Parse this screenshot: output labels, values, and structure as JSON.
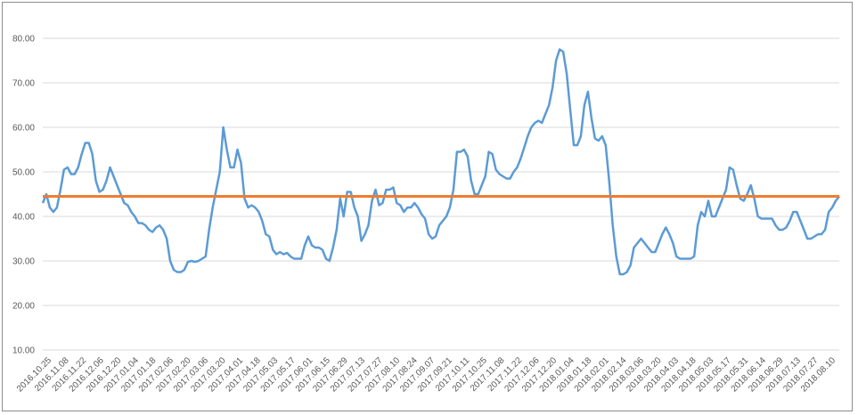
{
  "chart_data": {
    "type": "line",
    "title": "",
    "xlabel": "",
    "ylabel": "",
    "ylim": [
      10,
      80
    ],
    "yticks": [
      "10.00",
      "20.00",
      "30.00",
      "40.00",
      "50.00",
      "60.00",
      "70.00",
      "80.00"
    ],
    "grid": true,
    "legend": "none",
    "x_tick_labels": [
      "2016.10.25",
      "2016.11.08",
      "2016.11.22",
      "2016.12.06",
      "2016.12.20",
      "2017.01.04",
      "2017.01.18",
      "2017.02.06",
      "2017.02.20",
      "2017.03.06",
      "2017.03.20",
      "2017.04.01",
      "2017.04.18",
      "2017.05.03",
      "2017.05.17",
      "2017.06.01",
      "2017.06.15",
      "2017.06.29",
      "2017.07.13",
      "2017.07.27",
      "2017.08.10",
      "2017.08.24",
      "2017.09.07",
      "2017.09.21",
      "2017.10.11",
      "2017.10.25",
      "2017.11.08",
      "2017.11.22",
      "2017.12.06",
      "2017.12.20",
      "2018.01.04",
      "2018.01.18",
      "2018.02.01",
      "2018.02.14",
      "2018.03.06",
      "2018.03.20",
      "2018.04.03",
      "2018.04.18",
      "2018.05.03",
      "2018.05.17",
      "2018.05.31",
      "2018.06.14",
      "2018.06.29",
      "2018.07.13",
      "2018.07.27",
      "2018.08.10"
    ],
    "series": [
      {
        "color": "#5b9bd5",
        "values": [
          43,
          45,
          42,
          41,
          42,
          46,
          50.5,
          51,
          49.5,
          49.5,
          51,
          54,
          56.5,
          56.5,
          54,
          48,
          45.5,
          46,
          48,
          51,
          49,
          47,
          45,
          43,
          42.5,
          41,
          40,
          38.5,
          38.5,
          38,
          37,
          36.5,
          37.5,
          38,
          37,
          35,
          30,
          28,
          27.5,
          27.5,
          28,
          29.8,
          30,
          29.8,
          30,
          30.5,
          31,
          37,
          42,
          46,
          50,
          60,
          55,
          51,
          51,
          55,
          52,
          44,
          42,
          42.5,
          42,
          41,
          39,
          36,
          35.5,
          32.5,
          31.5,
          32,
          31.5,
          31.8,
          31,
          30.5,
          30.5,
          30.5,
          33.5,
          35.5,
          33.5,
          33,
          33,
          32.5,
          30.5,
          30,
          33,
          37,
          44,
          40,
          45.5,
          45.5,
          42,
          40,
          34.5,
          36,
          38,
          43.5,
          46,
          42.5,
          43,
          46,
          46,
          46.5,
          43,
          42.5,
          41,
          42,
          42,
          43,
          42,
          40.5,
          39.5,
          36,
          35,
          35.5,
          38,
          39,
          40,
          42,
          46,
          54.5,
          54.5,
          55,
          53.5,
          48,
          45,
          45,
          47,
          49,
          54.5,
          54,
          50.5,
          49.5,
          49,
          48.5,
          48.5,
          50,
          51,
          53,
          55.5,
          58,
          60,
          61,
          61.5,
          61,
          63,
          65,
          69,
          75,
          77.5,
          77,
          72,
          64,
          56,
          56,
          58,
          65,
          68,
          62,
          57.5,
          57,
          58,
          56,
          48,
          38,
          31,
          27,
          27,
          27.5,
          29,
          33,
          34,
          35,
          34,
          33,
          32,
          32,
          34,
          36,
          37.5,
          36,
          34,
          31,
          30.5,
          30.5,
          30.5,
          30.5,
          31,
          38,
          41,
          40,
          43.5,
          40,
          40,
          42,
          44,
          46,
          51,
          50.5,
          47,
          44,
          43.5,
          45,
          47,
          44,
          40,
          39.5,
          39.5,
          39.5,
          39.5,
          38,
          37,
          37,
          37.5,
          39,
          41,
          41,
          39,
          37,
          35,
          35,
          35.5,
          36,
          36,
          37,
          41,
          42,
          43.5,
          44.5
        ]
      },
      {
        "color": "#ed7d31",
        "values": [
          44.5,
          44.5
        ]
      }
    ]
  }
}
